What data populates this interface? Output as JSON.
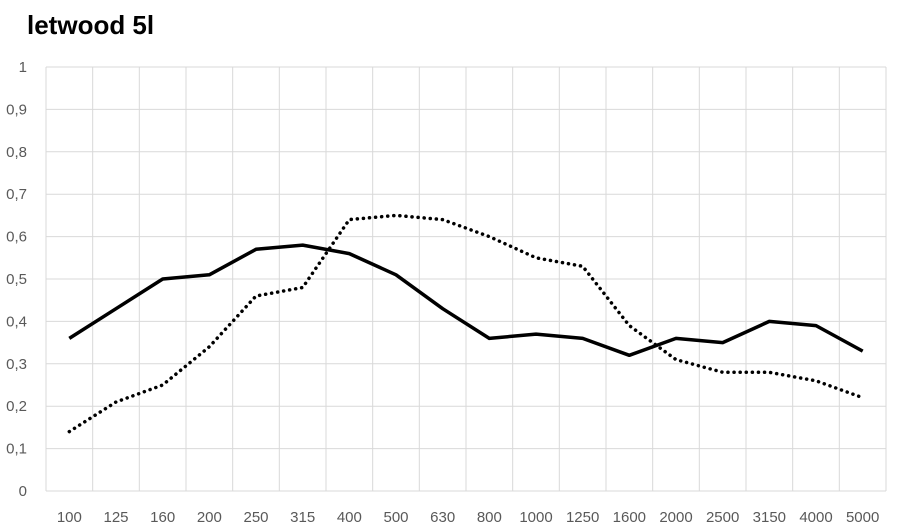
{
  "chart_data": {
    "type": "line",
    "title": "letwood 5l",
    "xlabel": "",
    "ylabel": "",
    "categories": [
      "100",
      "125",
      "160",
      "200",
      "250",
      "315",
      "400",
      "500",
      "630",
      "800",
      "1000",
      "1250",
      "1600",
      "2000",
      "2500",
      "3150",
      "4000",
      "5000"
    ],
    "ylim": [
      0,
      1
    ],
    "yticks": [
      "0",
      "0,1",
      "0,2",
      "0,3",
      "0,4",
      "0,5",
      "0,6",
      "0,7",
      "0,8",
      "0,9",
      "1"
    ],
    "grid": true,
    "legend": "none",
    "series": [
      {
        "style": "solid",
        "color": "#000000",
        "values": [
          0.36,
          0.43,
          0.5,
          0.51,
          0.57,
          0.58,
          0.56,
          0.51,
          0.43,
          0.36,
          0.37,
          0.36,
          0.32,
          0.36,
          0.35,
          0.4,
          0.39,
          0.33
        ]
      },
      {
        "style": "dotted",
        "color": "#000000",
        "values": [
          0.14,
          0.21,
          0.25,
          0.34,
          0.46,
          0.48,
          0.64,
          0.65,
          0.64,
          0.6,
          0.55,
          0.53,
          0.39,
          0.31,
          0.28,
          0.28,
          0.26,
          0.22
        ]
      }
    ]
  }
}
